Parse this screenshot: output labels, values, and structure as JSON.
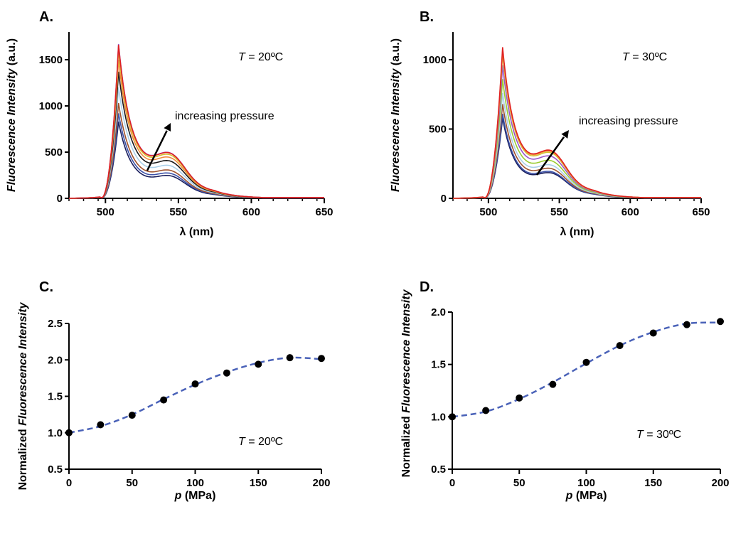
{
  "figure": {
    "panels": [
      {
        "id": "A",
        "letter": "A.",
        "temp_prefix": "T",
        "temp_value": " = 20ºC",
        "annotation": "increasing pressure"
      },
      {
        "id": "B",
        "letter": "B.",
        "temp_prefix": "T",
        "temp_value": " = 30ºC",
        "annotation": "increasing pressure"
      },
      {
        "id": "C",
        "letter": "C.",
        "temp_prefix": "T",
        "temp_value": " = 20ºC"
      },
      {
        "id": "D",
        "letter": "D.",
        "temp_prefix": "T",
        "temp_value": " = 30ºC"
      }
    ]
  },
  "chart_data": [
    {
      "type": "line",
      "panel": "A",
      "xlabel": "λ (nm)",
      "ylabel": {
        "italic": "Fluorescence Intensity",
        "normal": " (a.u.)"
      },
      "xlim": [
        475,
        650
      ],
      "ylim": [
        0,
        1800
      ],
      "xticks": [
        500,
        550,
        600,
        650
      ],
      "yticks": [
        0,
        500,
        1000,
        1500
      ],
      "annotation": "increasing pressure",
      "temperature": "T = 20ºC",
      "series_shape": {
        "onset_nm": 497,
        "peak_nm": 509,
        "shoulder_nm": 545,
        "shoulder_ratio": 0.3
      },
      "series": [
        {
          "color": "#1a1f5e",
          "peak": 830
        },
        {
          "color": "#3d52a8",
          "peak": 920
        },
        {
          "color": "#a0522d",
          "peak": 1030
        },
        {
          "color": "#a9cfe8",
          "peak": 1200
        },
        {
          "color": "#1a1a1a",
          "peak": 1370
        },
        {
          "color": "#f08a3c",
          "peak": 1500
        },
        {
          "color": "#d4c030",
          "peak": 1600
        },
        {
          "color": "#9a55c8",
          "peak": 1670
        },
        {
          "color": "#e02020",
          "peak": 1660
        }
      ]
    },
    {
      "type": "line",
      "panel": "B",
      "xlabel": "λ (nm)",
      "ylabel": {
        "italic": "Fluorescence Intensity",
        "normal": " (a.u.)"
      },
      "xlim": [
        475,
        650
      ],
      "ylim": [
        0,
        1200
      ],
      "xticks": [
        500,
        550,
        600,
        650
      ],
      "yticks": [
        0,
        500,
        1000
      ],
      "annotation": "increasing pressure",
      "temperature": "T = 30ºC",
      "series_shape": {
        "onset_nm": 497,
        "peak_nm": 510,
        "shoulder_nm": 545,
        "shoulder_ratio": 0.33
      },
      "series": [
        {
          "color": "#1a1f5e",
          "peak": 580
        },
        {
          "color": "#3d52a8",
          "peak": 610
        },
        {
          "color": "#a0522d",
          "peak": 680
        },
        {
          "color": "#a9cfe8",
          "peak": 760
        },
        {
          "color": "#9acd32",
          "peak": 860
        },
        {
          "color": "#9a55c8",
          "peak": 960
        },
        {
          "color": "#d4c030",
          "peak": 1040
        },
        {
          "color": "#f08a3c",
          "peak": 1070
        },
        {
          "color": "#e02020",
          "peak": 1090
        }
      ]
    },
    {
      "type": "scatter",
      "panel": "C",
      "xlabel": {
        "italic": "p",
        "normal": " (MPa)"
      },
      "ylabel": {
        "normal": "Normalized ",
        "italic": "Fluorescence Intensity"
      },
      "xlim": [
        0,
        200
      ],
      "ylim": [
        0.5,
        2.5
      ],
      "xticks": [
        0,
        50,
        100,
        150,
        200
      ],
      "yticks": [
        0.5,
        1.0,
        1.5,
        2.0,
        2.5
      ],
      "x": [
        0,
        25,
        50,
        75,
        100,
        125,
        150,
        175,
        200
      ],
      "y": [
        1.0,
        1.11,
        1.24,
        1.45,
        1.67,
        1.82,
        1.94,
        2.03,
        2.02
      ],
      "fit": {
        "style": "dashed",
        "color": "#4a62b8",
        "x": [
          0,
          25,
          50,
          75,
          100,
          125,
          150,
          175,
          200
        ],
        "y": [
          1.0,
          1.09,
          1.25,
          1.46,
          1.66,
          1.83,
          1.96,
          2.03,
          2.01
        ]
      },
      "temperature": "T = 20ºC"
    },
    {
      "type": "scatter",
      "panel": "D",
      "xlabel": {
        "italic": "p",
        "normal": " (MPa)"
      },
      "ylabel": {
        "normal": "Normalized ",
        "italic": "Fluorescence Intensity"
      },
      "xlim": [
        0,
        200
      ],
      "ylim": [
        0.5,
        2.0
      ],
      "xticks": [
        0,
        50,
        100,
        150,
        200
      ],
      "yticks": [
        0.5,
        1.0,
        1.5,
        2.0
      ],
      "x": [
        0,
        25,
        50,
        75,
        100,
        125,
        150,
        175,
        200
      ],
      "y": [
        1.0,
        1.06,
        1.18,
        1.31,
        1.52,
        1.68,
        1.8,
        1.88,
        1.91
      ],
      "fit": {
        "style": "dashed",
        "color": "#4a62b8",
        "x": [
          0,
          25,
          50,
          75,
          100,
          125,
          150,
          175,
          200
        ],
        "y": [
          1.0,
          1.05,
          1.17,
          1.33,
          1.51,
          1.68,
          1.81,
          1.89,
          1.9
        ]
      },
      "temperature": "T = 30ºC"
    }
  ]
}
